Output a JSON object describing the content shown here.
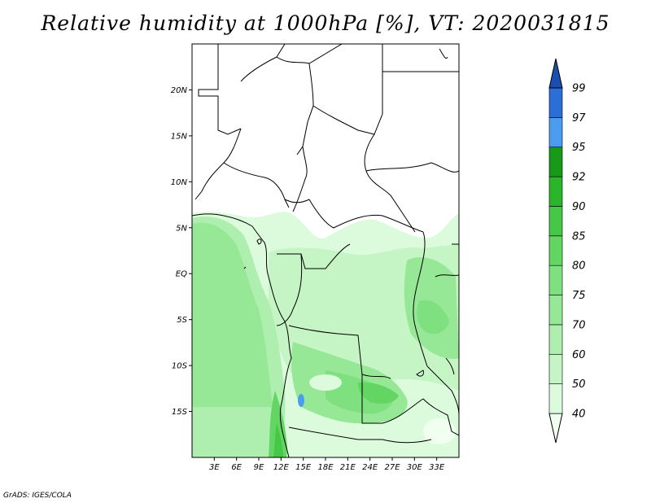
{
  "title": "Relative humidity at 1000hPa [%], VT: 2020031815",
  "credit": "GrADS: IGES/COLA",
  "map": {
    "lon_range": [
      0,
      36
    ],
    "lat_range": [
      -20,
      25
    ],
    "lon_ticks": [
      {
        "value": 3,
        "label": "3E"
      },
      {
        "value": 6,
        "label": "6E"
      },
      {
        "value": 9,
        "label": "9E"
      },
      {
        "value": 12,
        "label": "12E"
      },
      {
        "value": 15,
        "label": "15E"
      },
      {
        "value": 18,
        "label": "18E"
      },
      {
        "value": 21,
        "label": "21E"
      },
      {
        "value": 24,
        "label": "24E"
      },
      {
        "value": 27,
        "label": "27E"
      },
      {
        "value": 30,
        "label": "30E"
      },
      {
        "value": 33,
        "label": "33E"
      }
    ],
    "lat_ticks": [
      {
        "value": 20,
        "label": "20N"
      },
      {
        "value": 15,
        "label": "15N"
      },
      {
        "value": 10,
        "label": "10N"
      },
      {
        "value": 5,
        "label": "5N"
      },
      {
        "value": 0,
        "label": "EQ"
      },
      {
        "value": -5,
        "label": "5S"
      },
      {
        "value": -10,
        "label": "10S"
      },
      {
        "value": -15,
        "label": "15S"
      }
    ]
  },
  "colorbar": {
    "levels": [
      "40",
      "50",
      "60",
      "70",
      "75",
      "80",
      "85",
      "90",
      "92",
      "95",
      "97",
      "99"
    ],
    "colors": [
      "#f0fff0",
      "#dcfadc",
      "#c5f4c5",
      "#aeeeae",
      "#96e896",
      "#7ee07e",
      "#62d562",
      "#45c845",
      "#2ab52a",
      "#179a17",
      "#4a9cf0",
      "#2a6fd8",
      "#1a4fb0"
    ]
  }
}
